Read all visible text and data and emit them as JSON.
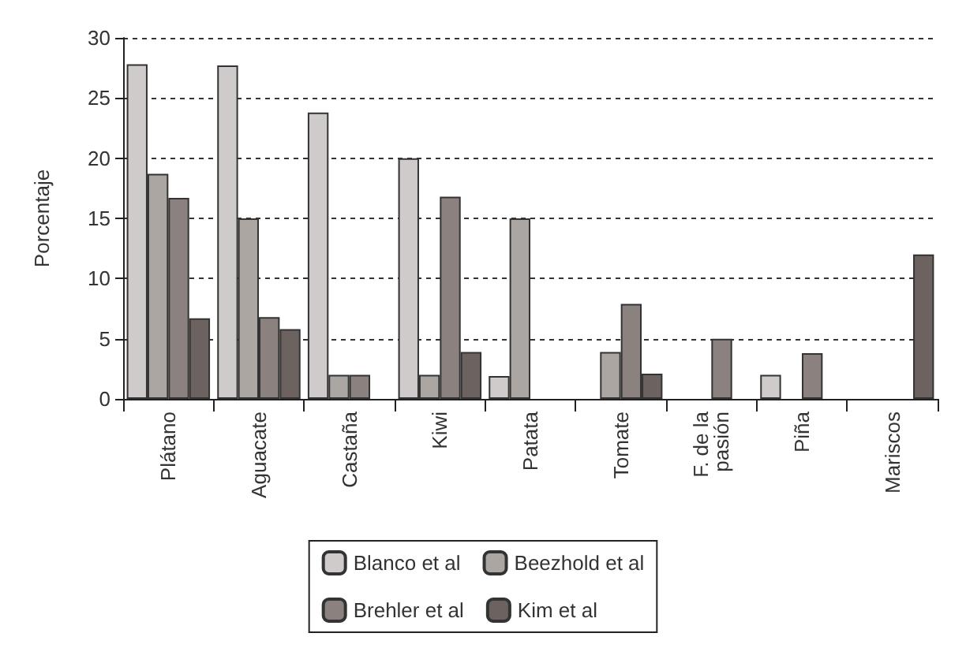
{
  "chart_data": {
    "type": "bar",
    "ylabel": "Porcentaje",
    "categories": [
      "Plátano",
      "Aguacate",
      "Castaña",
      "Kiwi",
      "Patata",
      "Tomate",
      "F. de la\npasión",
      "Piña",
      "Mariscos"
    ],
    "series": [
      {
        "name": "Blanco et al",
        "color": "#cfcbca",
        "values": [
          27.8,
          27.7,
          23.8,
          20,
          1.9,
          null,
          null,
          2,
          null
        ]
      },
      {
        "name": "Beezhold et al",
        "color": "#aba6a2",
        "values": [
          18.7,
          15,
          2,
          2,
          15,
          3.9,
          null,
          null,
          null
        ]
      },
      {
        "name": "Brehler et al",
        "color": "#8b817e",
        "values": [
          16.7,
          6.8,
          2,
          16.8,
          null,
          7.9,
          5,
          3.8,
          null
        ]
      },
      {
        "name": "Kim et al",
        "color": "#6c6260",
        "values": [
          6.7,
          5.8,
          null,
          3.9,
          null,
          2.1,
          null,
          null,
          12
        ]
      }
    ],
    "ylim": [
      0,
      30
    ],
    "yticks": [
      0,
      5,
      10,
      15,
      20,
      25,
      30
    ],
    "grid": "y",
    "legend": "bottom"
  }
}
